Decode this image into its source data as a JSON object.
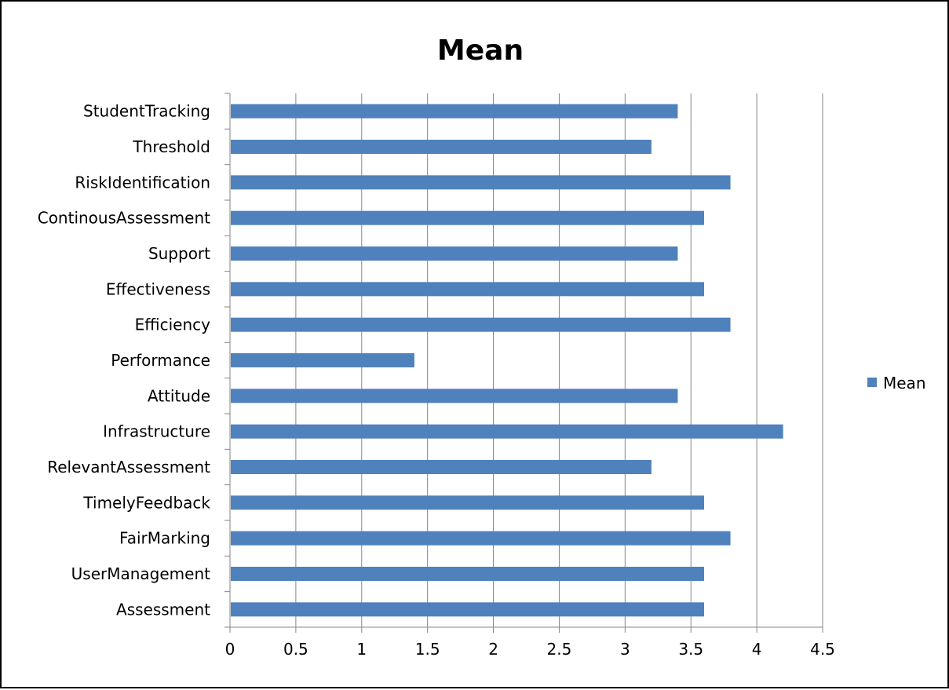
{
  "chart_data": {
    "type": "bar",
    "orientation": "horizontal",
    "title": "Mean",
    "xlabel": "",
    "ylabel": "",
    "categories": [
      "StudentTracking",
      "Threshold",
      "RiskIdentification",
      "ContinousAssessment",
      "Support",
      "Effectiveness",
      "Efficiency",
      "Performance",
      "Attitude",
      "Infrastructure",
      "RelevantAssessment",
      "TimelyFeedback",
      "FairMarking",
      "UserManagement",
      "Assessment"
    ],
    "series": [
      {
        "name": "Mean",
        "color": "#4F81BD",
        "values": [
          3.4,
          3.2,
          3.8,
          3.6,
          3.4,
          3.6,
          3.8,
          1.4,
          3.4,
          4.2,
          3.2,
          3.6,
          3.8,
          3.6,
          3.6
        ]
      }
    ],
    "xlim": [
      0,
      4.5
    ],
    "xticks": [
      "0",
      "0.5",
      "1",
      "1.5",
      "2",
      "2.5",
      "3",
      "3.5",
      "4",
      "4.5"
    ],
    "grid": "vertical",
    "legend": "right"
  }
}
